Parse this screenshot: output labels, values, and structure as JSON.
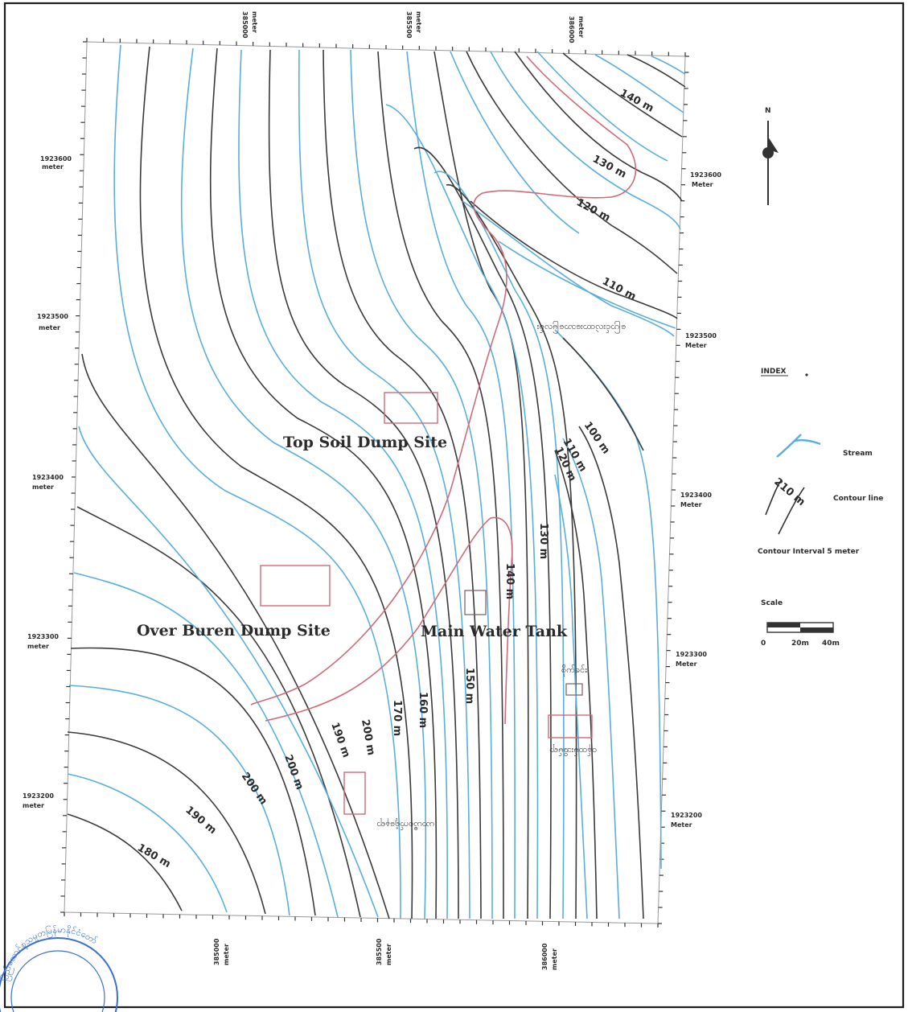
{
  "sites": {
    "top_soil": "Top Soil Dump Site",
    "over_burden": "Over Buren Dump Site",
    "water_tank": "Main Water Tank"
  },
  "contour_labels": {
    "c140_top": "140 m",
    "c130_top": "130 m",
    "c120_top": "120 m",
    "c110_top": "110 m",
    "c100_mid": "100 m",
    "c110_mid": "110 m",
    "c120_mid": "120 m",
    "c130_mid": "130 m",
    "c140_mid": "140 m",
    "c150_low": "150 m",
    "c160_low": "160 m",
    "c170_low": "170 m",
    "c200_a": "200 m",
    "c190_a": "190 m",
    "c200_b": "200 m",
    "c200_c": "200 m",
    "c190_b": "190 m",
    "c180": "180 m"
  },
  "myanmar_labels": {
    "label1": "ပြောင်းလဲထားသောမြေလမ်း",
    "label2": "စိုက်ခင်း",
    "label3": "ဝန်ထမ်းအိမ်ရာ",
    "label4": "ယာယီစက်ရုံနေရာ"
  },
  "coords": {
    "top1": "385000",
    "top1_unit": "meter",
    "top2": "385500",
    "top2_unit": "meter",
    "top3": "386000",
    "top3_unit": "meter",
    "bot1": "385000",
    "bot1_unit": "meter",
    "bot2": "385500",
    "bot2_unit": "meter",
    "bot3": "386000",
    "bot3_unit": "meter",
    "left1": "1923600",
    "left1_unit": "meter",
    "left2": "1923500",
    "left2_unit": "meter",
    "left3": "1923400",
    "left3_unit": "meter",
    "left4": "1923300",
    "left4_unit": "meter",
    "left5": "1923200",
    "left5_unit": "meter",
    "right1": "1923600",
    "right1_unit": "Meter",
    "right2": "1923500",
    "right2_unit": "Meter",
    "right3": "1923400",
    "right3_unit": "Meter",
    "right4": "1923300",
    "right4_unit": "Meter",
    "right5": "1923200",
    "right5_unit": "Meter"
  },
  "north": "N",
  "legend": {
    "title": "INDEX",
    "stream": "Stream",
    "contour_line": "Contour line",
    "contour_sample": "210 m",
    "interval": "Contour Interval 5 meter",
    "scale_title": "Scale",
    "scale_0": "0",
    "scale_20": "20m",
    "scale_40": "40m"
  },
  "stamp": {
    "text": "ပြည်ထောင်စုသမ္မတမြန်မာနိုင်ငံတော်"
  },
  "colors": {
    "contour_major": "#3a3a3a",
    "contour_minor": "#5aaedc",
    "road": "#cf6a78",
    "stamp": "#3a6fd0"
  }
}
